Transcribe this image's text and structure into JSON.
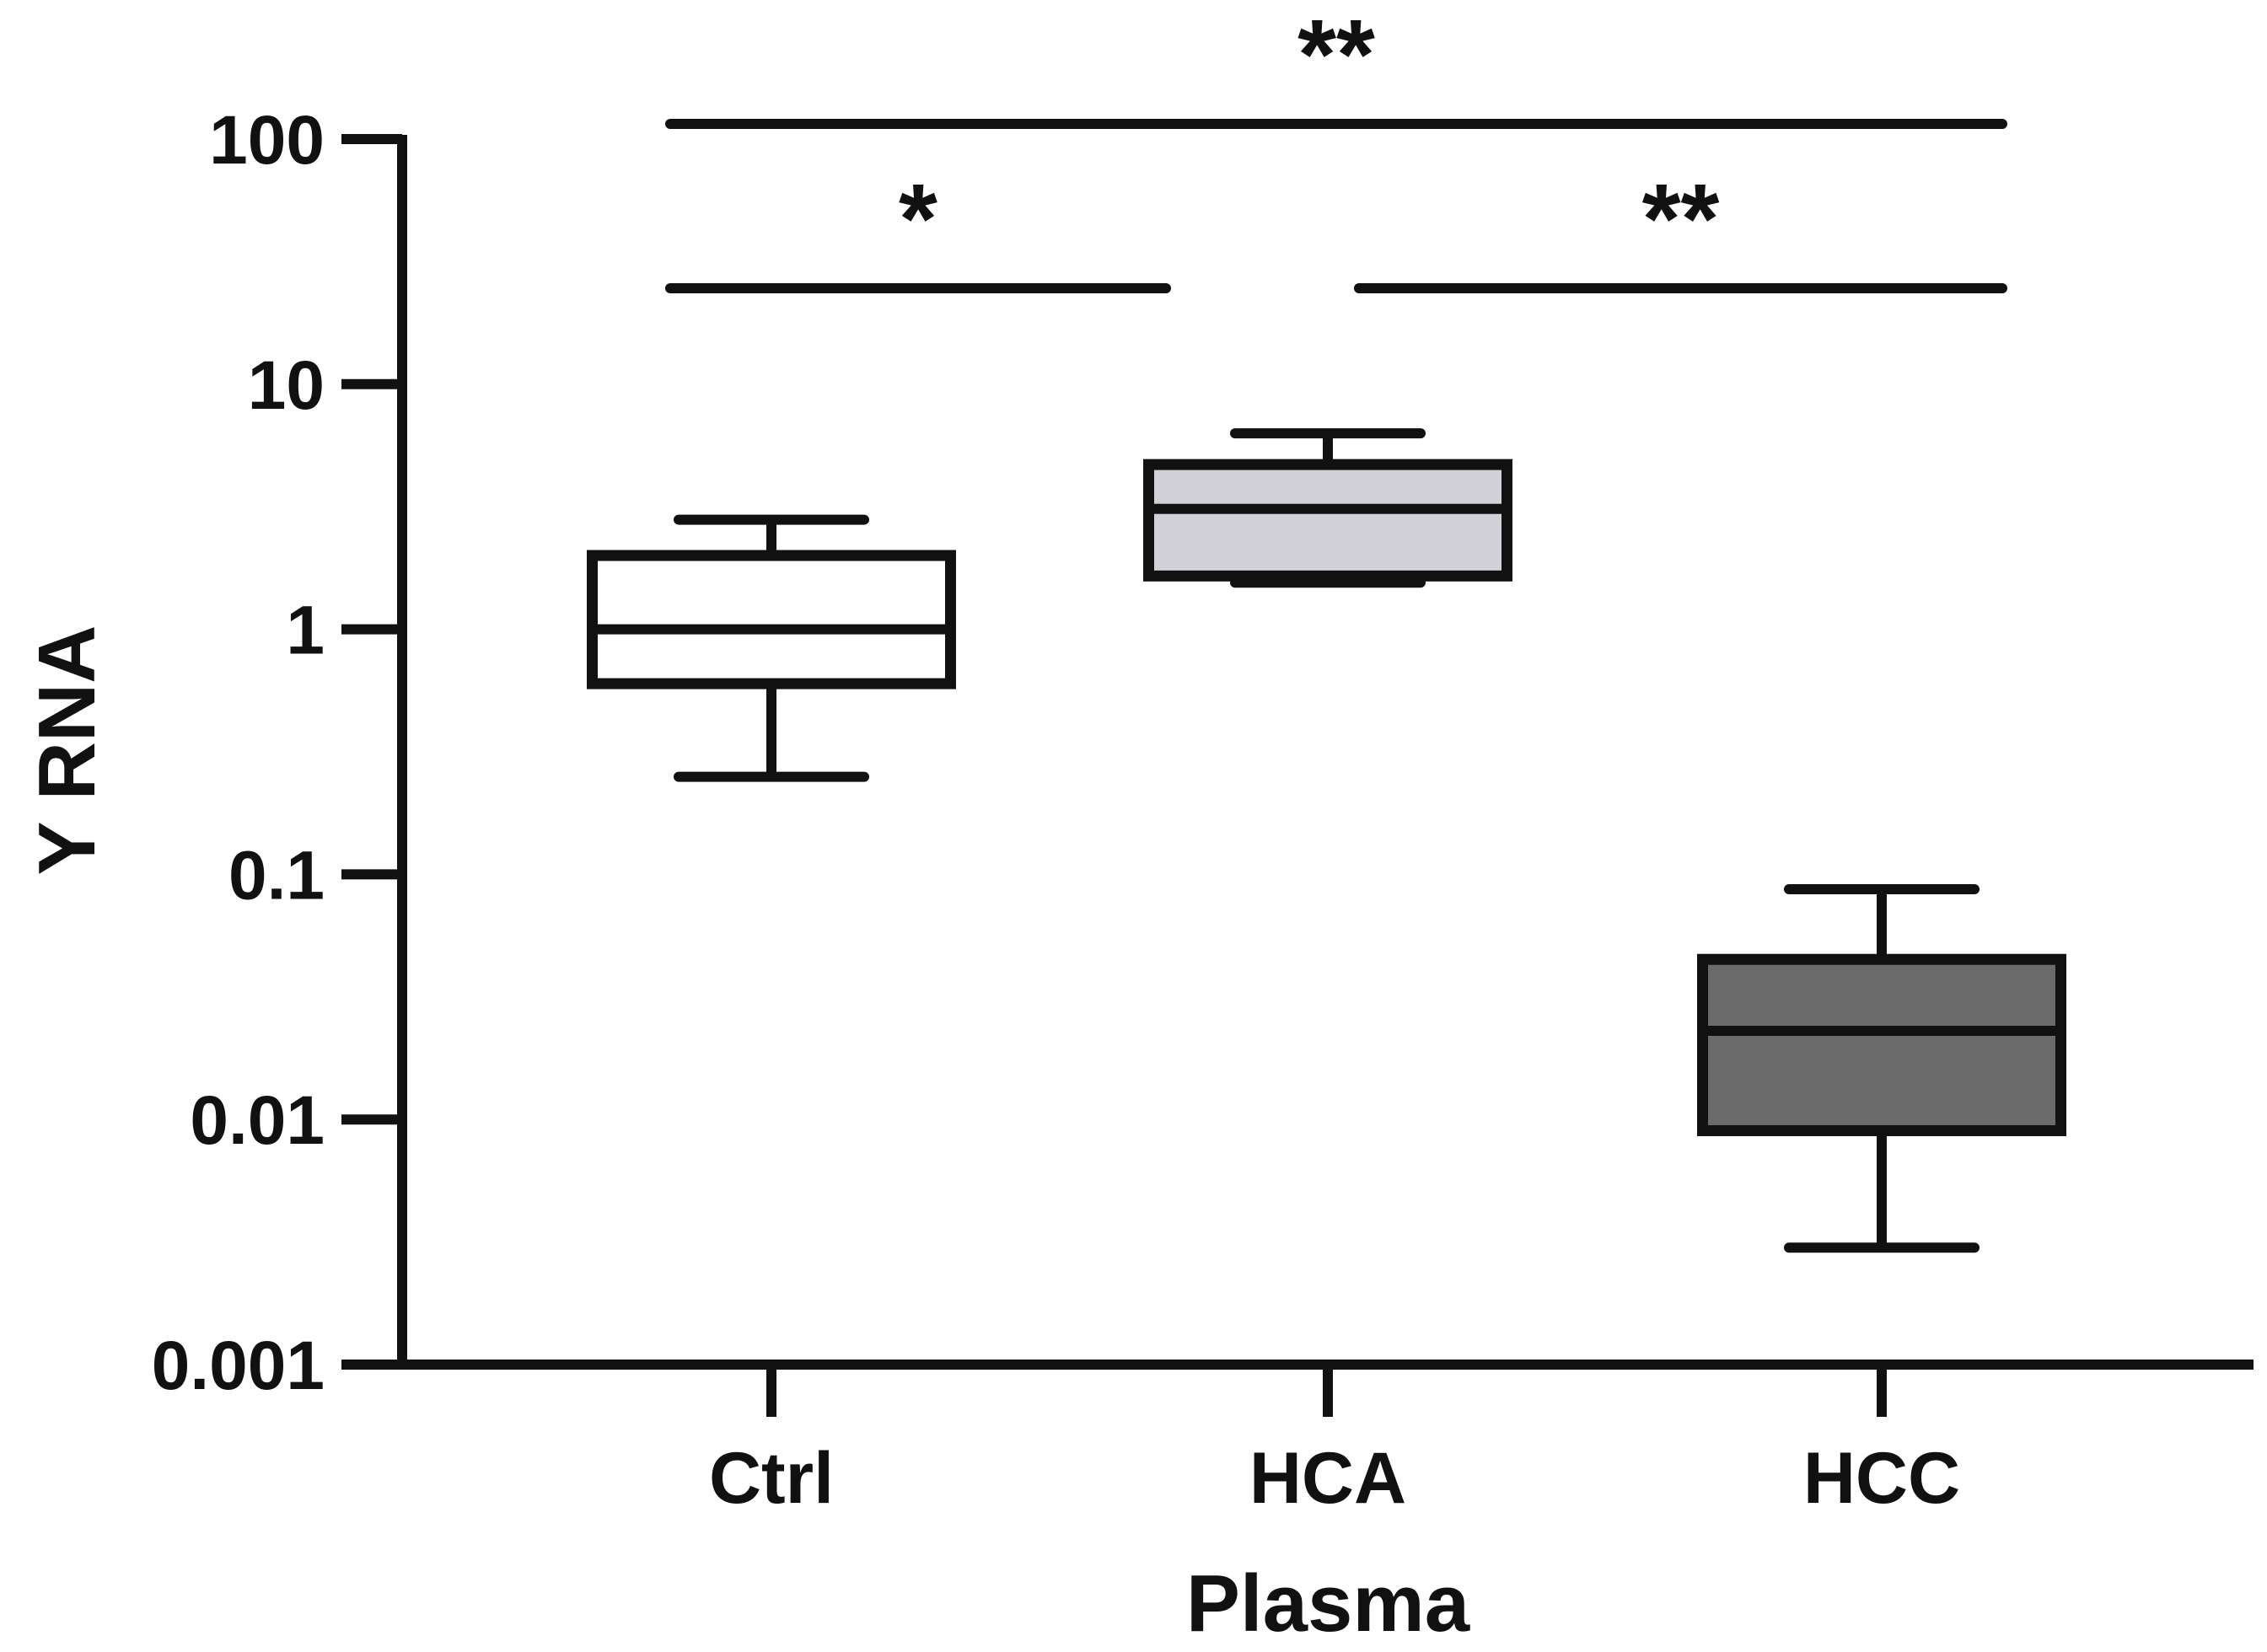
{
  "chart_data": {
    "type": "box",
    "title": "",
    "xlabel": "Plasma",
    "ylabel": "Y RNA",
    "yscale": "log",
    "ylim": [
      0.001,
      100
    ],
    "yticks": [
      {
        "value": 0.001,
        "label": "0.001"
      },
      {
        "value": 0.01,
        "label": "0.01"
      },
      {
        "value": 0.1,
        "label": "0.1"
      },
      {
        "value": 1,
        "label": "1"
      },
      {
        "value": 10,
        "label": "10"
      },
      {
        "value": 100,
        "label": "100"
      }
    ],
    "categories": [
      "Ctrl",
      "HCA",
      "HCC"
    ],
    "boxes": [
      {
        "category": "Ctrl",
        "whisker_low": 0.25,
        "q1": 0.6,
        "median": 1.0,
        "q3": 2.0,
        "whisker_high": 2.8,
        "fill": "#ffffff"
      },
      {
        "category": "HCA",
        "whisker_low": 1.55,
        "q1": 1.65,
        "median": 3.1,
        "q3": 4.7,
        "whisker_high": 6.3,
        "fill": "#d3d1d8"
      },
      {
        "category": "HCC",
        "whisker_low": 0.003,
        "q1": 0.009,
        "median": 0.023,
        "q3": 0.045,
        "whisker_high": 0.087,
        "fill": "#6b6b6b"
      }
    ],
    "significance": [
      {
        "from": "Ctrl",
        "to": "HCC",
        "label": "**"
      },
      {
        "from": "Ctrl",
        "to": "HCA",
        "label": "*"
      },
      {
        "from": "HCA",
        "to": "HCC",
        "label": "**"
      }
    ],
    "colors": {
      "stroke": "#111111"
    }
  }
}
